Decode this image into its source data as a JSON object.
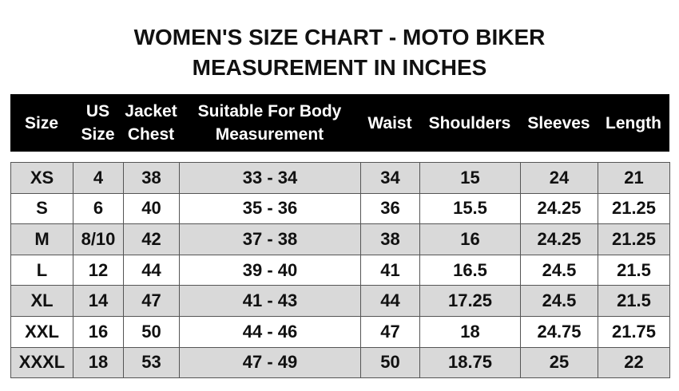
{
  "title_line1": "WOMEN'S SIZE CHART - MOTO BIKER",
  "title_line2": "MEASUREMENT IN INCHES",
  "headers": [
    [
      "Size"
    ],
    [
      "US",
      "Size"
    ],
    [
      "Jacket",
      "Chest"
    ],
    [
      "Suitable For Body",
      "Measurement"
    ],
    [
      "Waist"
    ],
    [
      "Shoulders"
    ],
    [
      "Sleeves"
    ],
    [
      "Length"
    ]
  ],
  "rows": [
    [
      "XS",
      "4",
      "38",
      "33 - 34",
      "34",
      "15",
      "24",
      "21"
    ],
    [
      "S",
      "6",
      "40",
      "35 - 36",
      "36",
      "15.5",
      "24.25",
      "21.25"
    ],
    [
      "M",
      "8/10",
      "42",
      "37 - 38",
      "38",
      "16",
      "24.25",
      "21.25"
    ],
    [
      "L",
      "12",
      "44",
      "39 - 40",
      "41",
      "16.5",
      "24.5",
      "21.5"
    ],
    [
      "XL",
      "14",
      "47",
      "41 - 43",
      "44",
      "17.25",
      "24.5",
      "21.5"
    ],
    [
      "XXL",
      "16",
      "50",
      "44 - 46",
      "47",
      "18",
      "24.75",
      "21.75"
    ],
    [
      "XXXL",
      "18",
      "53",
      "47 - 49",
      "50",
      "18.75",
      "25",
      "22"
    ]
  ]
}
